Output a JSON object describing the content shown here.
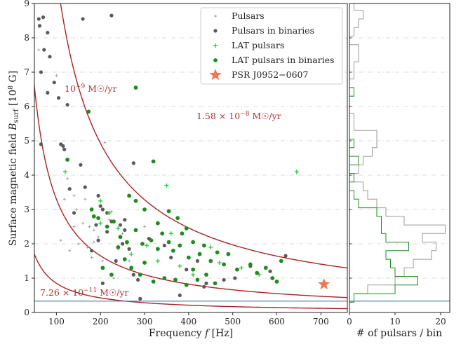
{
  "chart_data": [
    {
      "type": "scatter",
      "xlabel": "Frequency f [Hz]",
      "ylabel": "Surface magnetic field B_surf [10^8 G]",
      "xlim": [
        50,
        760
      ],
      "ylim": [
        0,
        9
      ],
      "xticks": [
        "100",
        "200",
        "300",
        "400",
        "500",
        "600",
        "700"
      ],
      "yticks": [
        "0",
        "1",
        "2",
        "3",
        "4",
        "5",
        "6",
        "7",
        "8",
        "9"
      ],
      "grid": "horizontal dashed",
      "legend": "top-right",
      "colors": {
        "curve": "#a82323",
        "line": "#4a78a8",
        "pulsars": "#9a9a9a",
        "binaries": "#5a5a5a",
        "lat": "#2ecc40",
        "lat_bin": "#1e8c1e",
        "star": "#f07850"
      },
      "curves": [
        {
          "label_prefix": "7.26 × 10",
          "label_exp": "−11",
          "label_unit": " M☉/yr",
          "k": 85
        },
        {
          "label_prefix": "10",
          "label_exp": "−9",
          "label_unit": " M☉/yr",
          "k": 330
        },
        {
          "label_prefix": "1.58 × 10",
          "label_exp": "−8",
          "label_unit": " M☉/yr",
          "k": 985
        }
      ],
      "hline": 0.33,
      "series": [
        {
          "name": "Pulsars",
          "marker": "plus-small",
          "points": [
            [
              60,
              7.65
            ],
            [
              100,
              6.9
            ],
            [
              118,
              3.3
            ],
            [
              125,
              3.9
            ],
            [
              140,
              3.4
            ],
            [
              145,
              3.0
            ],
            [
              160,
              2.6
            ],
            [
              165,
              3.3
            ],
            [
              170,
              1.9
            ],
            [
              175,
              2.5
            ],
            [
              185,
              2.4
            ],
            [
              195,
              2.2
            ],
            [
              205,
              1.5
            ],
            [
              210,
              4.95
            ],
            [
              220,
              2.7
            ],
            [
              230,
              1.0
            ],
            [
              240,
              1.85
            ],
            [
              250,
              2.3
            ],
            [
              265,
              1.5
            ],
            [
              110,
              2.1
            ],
            [
              130,
              1.8
            ],
            [
              150,
              2.0
            ],
            [
              185,
              2.05
            ],
            [
              225,
              2.95
            ],
            [
              300,
              2.5
            ],
            [
              180,
              1.6
            ],
            [
              140,
              2.5
            ],
            [
              260,
              2.0
            ]
          ]
        },
        {
          "name": "Pulsars in binaries",
          "marker": "dot-grey",
          "points": [
            [
              60,
              8.55
            ],
            [
              62,
              8.35
            ],
            [
              70,
              8.6
            ],
            [
              80,
              8.15
            ],
            [
              72,
              7.65
            ],
            [
              85,
              7.45
            ],
            [
              65,
              7.0
            ],
            [
              160,
              8.55
            ],
            [
              225,
              8.65
            ],
            [
              95,
              6.7
            ],
            [
              80,
              6.4
            ],
            [
              105,
              6.25
            ],
            [
              125,
              6.05
            ],
            [
              65,
              4.9
            ],
            [
              110,
              4.9
            ],
            [
              115,
              4.85
            ],
            [
              118,
              4.75
            ],
            [
              155,
              4.3
            ],
            [
              275,
              4.35
            ],
            [
              130,
              3.6
            ],
            [
              165,
              3.65
            ],
            [
              195,
              3.4
            ],
            [
              200,
              3.1
            ],
            [
              205,
              3.0
            ],
            [
              215,
              2.9
            ],
            [
              225,
              2.65
            ],
            [
              245,
              2.55
            ],
            [
              255,
              2.4
            ],
            [
              195,
              2.1
            ],
            [
              180,
              1.8
            ],
            [
              235,
              1.5
            ],
            [
              275,
              1.1
            ],
            [
              285,
              0.95
            ],
            [
              190,
              2.55
            ],
            [
              215,
              2.35
            ],
            [
              250,
              2.0
            ],
            [
              265,
              1.85
            ],
            [
              310,
              2.15
            ],
            [
              345,
              1.95
            ],
            [
              360,
              1.6
            ],
            [
              395,
              1.25
            ],
            [
              420,
              1.5
            ],
            [
              435,
              0.75
            ],
            [
              440,
              0.85
            ],
            [
              505,
              1.0
            ],
            [
              540,
              1.35
            ],
            [
              585,
              1.2
            ],
            [
              620,
              1.65
            ],
            [
              140,
              2.9
            ],
            [
              255,
              2.7
            ],
            [
              205,
              0.85
            ],
            [
              380,
              0.5
            ],
            [
              290,
              0.4
            ],
            [
              480,
              0.95
            ]
          ]
        },
        {
          "name": "LAT pulsars",
          "marker": "plus-green",
          "points": [
            [
              120,
              4.1
            ],
            [
              220,
              2.9
            ],
            [
              350,
              3.7
            ],
            [
              645,
              4.1
            ],
            [
              200,
              3.25
            ],
            [
              240,
              2.45
            ],
            [
              305,
              1.95
            ],
            [
              330,
              1.5
            ],
            [
              380,
              1.35
            ],
            [
              410,
              1.1
            ],
            [
              470,
              1.45
            ],
            [
              520,
              1.3
            ],
            [
              200,
              2.6
            ],
            [
              270,
              1.7
            ],
            [
              360,
              2.3
            ],
            [
              450,
              1.9
            ],
            [
              560,
              1.1
            ]
          ]
        },
        {
          "name": "LAT pulsars in binaries",
          "marker": "dot-green",
          "points": [
            [
              280,
              6.55
            ],
            [
              173,
              5.85
            ],
            [
              125,
              4.45
            ],
            [
              320,
              4.4
            ],
            [
              265,
              3.4
            ],
            [
              280,
              3.25
            ],
            [
              300,
              3.0
            ],
            [
              180,
              3.0
            ],
            [
              185,
              2.8
            ],
            [
              195,
              2.75
            ],
            [
              215,
              2.5
            ],
            [
              230,
              2.65
            ],
            [
              245,
              2.2
            ],
            [
              260,
              2.05
            ],
            [
              280,
              2.4
            ],
            [
              295,
              2.0
            ],
            [
              315,
              2.1
            ],
            [
              330,
              1.85
            ],
            [
              340,
              2.3
            ],
            [
              355,
              2.05
            ],
            [
              365,
              1.8
            ],
            [
              380,
              1.95
            ],
            [
              395,
              2.45
            ],
            [
              410,
              2.05
            ],
            [
              425,
              1.7
            ],
            [
              435,
              1.95
            ],
            [
              450,
              1.5
            ],
            [
              465,
              1.75
            ],
            [
              480,
              1.4
            ],
            [
              490,
              1.7
            ],
            [
              510,
              1.25
            ],
            [
              540,
              1.4
            ],
            [
              555,
              1.15
            ],
            [
              575,
              1.3
            ],
            [
              590,
              1.0
            ],
            [
              600,
              0.9
            ],
            [
              610,
              1.5
            ],
            [
              255,
              1.55
            ],
            [
              270,
              1.3
            ],
            [
              290,
              1.1
            ],
            [
              320,
              0.9
            ],
            [
              345,
              1.0
            ],
            [
              370,
              0.95
            ],
            [
              395,
              0.8
            ],
            [
              420,
              0.95
            ],
            [
              440,
              1.1
            ],
            [
              460,
              0.85
            ],
            [
              330,
              2.6
            ],
            [
              355,
              2.95
            ],
            [
              375,
              2.75
            ],
            [
              385,
              2.3
            ],
            [
              400,
              1.6
            ],
            [
              410,
              1.25
            ],
            [
              300,
              1.45
            ],
            [
              240,
              1.9
            ],
            [
              205,
              1.3
            ],
            [
              225,
              1.1
            ]
          ]
        },
        {
          "name": "PSR J0952−0607",
          "marker": "star",
          "points": [
            [
              707,
              0.82
            ]
          ]
        }
      ]
    },
    {
      "type": "histogram",
      "xlabel": "# of pulsars / bin",
      "xlim": [
        0,
        22
      ],
      "xticks": [
        "0",
        "10",
        "20"
      ],
      "bins_edges": [
        0.3,
        0.55,
        0.8,
        1.05,
        1.3,
        1.55,
        1.8,
        2.05,
        2.3,
        2.55,
        2.8,
        3.05,
        3.3,
        3.55,
        3.8,
        4.05,
        4.3,
        4.55,
        4.8,
        5.05,
        5.3,
        5.55,
        5.8,
        6.05,
        6.3,
        6.55,
        6.8,
        7.05,
        7.3,
        7.55,
        7.8,
        8.05,
        8.3,
        8.55,
        8.8,
        9.0
      ],
      "series": [
        {
          "name": "all",
          "color": "#9a9a9a",
          "counts": [
            1,
            4,
            10,
            12,
            14,
            18,
            19,
            16,
            21,
            12,
            8,
            6,
            4,
            3,
            1,
            2,
            3,
            5,
            6,
            6,
            1,
            1,
            0,
            0,
            1,
            0,
            1,
            1,
            2,
            2,
            0,
            1,
            2,
            3,
            1
          ]
        },
        {
          "name": "lat",
          "color": "#1e8c1e",
          "counts": [
            1,
            10,
            15,
            10,
            9,
            8,
            13,
            8,
            7,
            7,
            6,
            2,
            1,
            0,
            1,
            0,
            2,
            0,
            1,
            0,
            0,
            0,
            0,
            0,
            1,
            0,
            0,
            0,
            0,
            0,
            0,
            0,
            0,
            0,
            0
          ]
        }
      ]
    }
  ]
}
